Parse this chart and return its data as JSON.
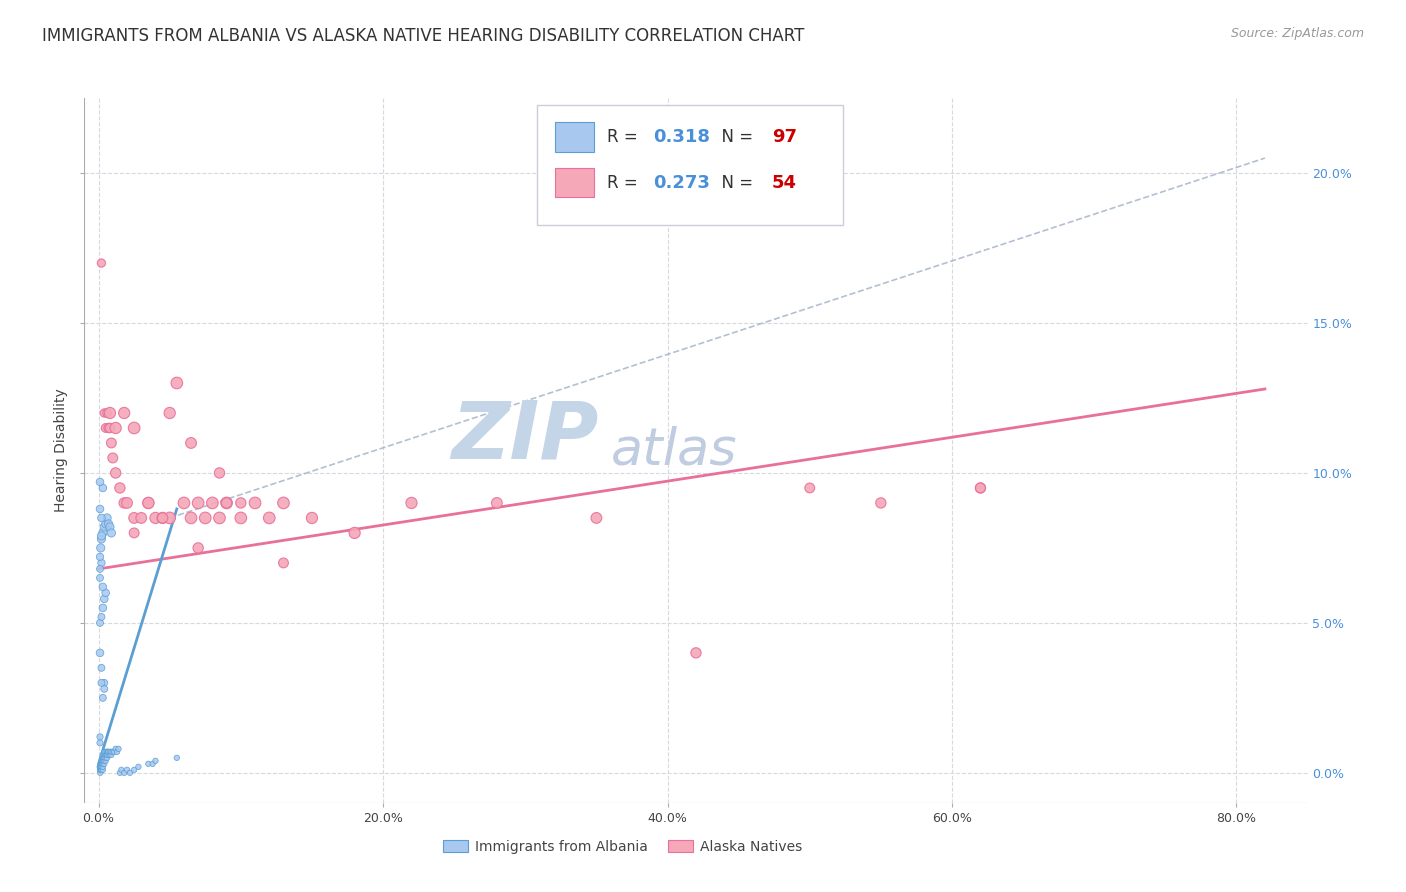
{
  "title": "IMMIGRANTS FROM ALBANIA VS ALASKA NATIVE HEARING DISABILITY CORRELATION CHART",
  "source": "Source: ZipAtlas.com",
  "xlabel_ticks": [
    "0.0%",
    "20.0%",
    "40.0%",
    "60.0%",
    "80.0%"
  ],
  "xlabel_tick_vals": [
    0.0,
    0.2,
    0.4,
    0.6,
    0.8
  ],
  "ylabel": "Hearing Disability",
  "ylabel_ticks": [
    "0.0%",
    "5.0%",
    "10.0%",
    "15.0%",
    "20.0%"
  ],
  "ylabel_tick_vals": [
    0.0,
    0.05,
    0.1,
    0.15,
    0.2
  ],
  "xlim": [
    -0.01,
    0.85
  ],
  "ylim": [
    -0.01,
    0.225
  ],
  "blue_R": 0.318,
  "blue_N": 97,
  "pink_R": 0.273,
  "pink_N": 54,
  "blue_color": "#a8c8f0",
  "pink_color": "#f4a8b8",
  "blue_edge_color": "#5a9fd4",
  "pink_edge_color": "#e8709a",
  "blue_line_color": "#5a9fd4",
  "pink_line_color": "#e8709a",
  "dashed_line_color": "#a0b0c8",
  "watermark_zip": "ZIP",
  "watermark_atlas": "atlas",
  "legend_label_blue": "Immigrants from Albania",
  "legend_label_pink": "Alaska Natives",
  "blue_scatter_x": [
    0.0008,
    0.001,
    0.001,
    0.0012,
    0.0012,
    0.0015,
    0.0015,
    0.0018,
    0.002,
    0.002,
    0.002,
    0.002,
    0.002,
    0.002,
    0.002,
    0.0022,
    0.0025,
    0.0025,
    0.003,
    0.003,
    0.003,
    0.003,
    0.003,
    0.003,
    0.003,
    0.0032,
    0.0035,
    0.004,
    0.004,
    0.004,
    0.004,
    0.004,
    0.0042,
    0.0045,
    0.005,
    0.005,
    0.005,
    0.005,
    0.0055,
    0.006,
    0.006,
    0.006,
    0.0065,
    0.007,
    0.007,
    0.008,
    0.008,
    0.009,
    0.009,
    0.01,
    0.011,
    0.012,
    0.013,
    0.014,
    0.015,
    0.016,
    0.018,
    0.02,
    0.022,
    0.025,
    0.028,
    0.035,
    0.038,
    0.04,
    0.055,
    0.001,
    0.0015,
    0.002,
    0.003,
    0.004,
    0.005,
    0.006,
    0.007,
    0.008,
    0.009,
    0.002,
    0.003,
    0.004,
    0.005,
    0.003,
    0.004,
    0.002,
    0.003,
    0.004,
    0.002,
    0.003,
    0.001,
    0.002,
    0.001,
    0.002,
    0.001,
    0.001,
    0.002,
    0.001,
    0.001,
    0.001,
    0.001
  ],
  "blue_scatter_y": [
    0.002,
    0.001,
    0.002,
    0.0,
    0.001,
    0.001,
    0.002,
    0.001,
    0.001,
    0.001,
    0.002,
    0.002,
    0.003,
    0.003,
    0.004,
    0.002,
    0.003,
    0.004,
    0.001,
    0.002,
    0.003,
    0.003,
    0.004,
    0.005,
    0.006,
    0.004,
    0.005,
    0.003,
    0.004,
    0.005,
    0.006,
    0.007,
    0.005,
    0.006,
    0.004,
    0.005,
    0.006,
    0.007,
    0.006,
    0.005,
    0.006,
    0.007,
    0.007,
    0.006,
    0.007,
    0.006,
    0.007,
    0.006,
    0.007,
    0.007,
    0.007,
    0.008,
    0.007,
    0.008,
    0.0,
    0.001,
    0.0,
    0.001,
    0.0,
    0.001,
    0.002,
    0.003,
    0.003,
    0.004,
    0.005,
    0.04,
    0.075,
    0.078,
    0.08,
    0.082,
    0.083,
    0.085,
    0.083,
    0.082,
    0.08,
    0.079,
    0.055,
    0.058,
    0.06,
    0.062,
    0.03,
    0.035,
    0.025,
    0.028,
    0.03,
    0.095,
    0.097,
    0.085,
    0.088,
    0.07,
    0.072,
    0.05,
    0.052,
    0.065,
    0.068,
    0.01,
    0.012
  ],
  "blue_scatter_size": [
    15,
    15,
    15,
    15,
    15,
    15,
    15,
    15,
    15,
    15,
    15,
    15,
    15,
    15,
    15,
    15,
    15,
    15,
    15,
    15,
    15,
    15,
    15,
    15,
    15,
    15,
    15,
    15,
    15,
    15,
    15,
    15,
    15,
    15,
    15,
    15,
    15,
    15,
    15,
    15,
    15,
    15,
    15,
    15,
    15,
    15,
    15,
    15,
    15,
    15,
    15,
    15,
    15,
    15,
    15,
    15,
    15,
    15,
    15,
    15,
    15,
    15,
    15,
    15,
    15,
    30,
    35,
    35,
    35,
    35,
    35,
    35,
    35,
    35,
    35,
    35,
    30,
    30,
    30,
    30,
    25,
    25,
    25,
    25,
    25,
    30,
    30,
    30,
    30,
    28,
    28,
    25,
    25,
    25,
    25,
    20,
    20
  ],
  "pink_scatter_x": [
    0.002,
    0.004,
    0.005,
    0.006,
    0.007,
    0.008,
    0.009,
    0.01,
    0.012,
    0.015,
    0.018,
    0.02,
    0.025,
    0.03,
    0.035,
    0.04,
    0.045,
    0.05,
    0.055,
    0.06,
    0.065,
    0.07,
    0.075,
    0.08,
    0.085,
    0.09,
    0.1,
    0.11,
    0.12,
    0.13,
    0.15,
    0.18,
    0.22,
    0.28,
    0.35,
    0.42,
    0.55,
    0.62,
    0.008,
    0.012,
    0.018,
    0.025,
    0.035,
    0.05,
    0.065,
    0.085,
    0.1,
    0.13,
    0.5,
    0.62,
    0.025,
    0.045,
    0.07,
    0.09
  ],
  "pink_scatter_y": [
    0.17,
    0.12,
    0.115,
    0.12,
    0.115,
    0.115,
    0.11,
    0.105,
    0.1,
    0.095,
    0.09,
    0.09,
    0.085,
    0.085,
    0.09,
    0.085,
    0.085,
    0.085,
    0.13,
    0.09,
    0.085,
    0.09,
    0.085,
    0.09,
    0.085,
    0.09,
    0.085,
    0.09,
    0.085,
    0.09,
    0.085,
    0.08,
    0.09,
    0.09,
    0.085,
    0.04,
    0.09,
    0.095,
    0.12,
    0.115,
    0.12,
    0.115,
    0.09,
    0.12,
    0.11,
    0.1,
    0.09,
    0.07,
    0.095,
    0.095,
    0.08,
    0.085,
    0.075,
    0.09
  ],
  "pink_scatter_size": [
    35,
    35,
    40,
    40,
    45,
    45,
    50,
    50,
    55,
    55,
    55,
    60,
    60,
    60,
    65,
    65,
    65,
    70,
    70,
    70,
    70,
    70,
    70,
    70,
    70,
    70,
    70,
    70,
    70,
    70,
    65,
    65,
    65,
    60,
    60,
    55,
    55,
    55,
    65,
    65,
    65,
    70,
    65,
    65,
    60,
    55,
    55,
    50,
    50,
    50,
    50,
    55,
    55,
    55
  ],
  "blue_line_x": [
    0.0,
    0.055
  ],
  "blue_line_y": [
    0.003,
    0.088
  ],
  "pink_line_x": [
    0.0,
    0.82
  ],
  "pink_line_y": [
    0.068,
    0.128
  ],
  "diag_line_x": [
    0.05,
    0.82
  ],
  "diag_line_y": [
    0.085,
    0.205
  ],
  "background_color": "#ffffff",
  "grid_color": "#d8d8e0",
  "title_fontsize": 12,
  "source_fontsize": 9,
  "axis_label_fontsize": 10,
  "tick_label_color_x": "#444444",
  "tick_label_color_y_right": "#4a90d9",
  "r_n_color": "#333333",
  "val_blue_color": "#4a90d9",
  "val_red_color": "#cc0000",
  "watermark_color_zip": "#c5d5e8",
  "watermark_color_atlas": "#c0cce0",
  "watermark_fontsize": 58,
  "legend_box_color": "#f0f0f8"
}
